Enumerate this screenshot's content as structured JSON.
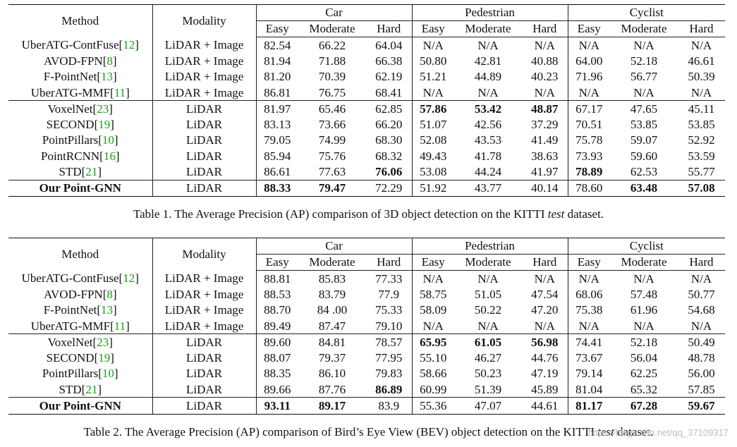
{
  "headers": {
    "method": "Method",
    "modality": "Modality",
    "groups": [
      "Car",
      "Pedestrian",
      "Cyclist"
    ],
    "subcols": [
      "Easy",
      "Moderate",
      "Hard"
    ]
  },
  "tables": [
    {
      "caption_pre": "Table 1. The Average Precision (AP) comparison of 3D object detection on the KITTI ",
      "caption_em": "test",
      "caption_post": " dataset.",
      "rows": [
        {
          "name": "UberATG-ContFuse",
          "ref": "12",
          "modality": "LiDAR + Image",
          "values": [
            "82.54",
            "66.22",
            "64.04",
            "N/A",
            "N/A",
            "N/A",
            "N/A",
            "N/A",
            "N/A"
          ],
          "bold": []
        },
        {
          "name": "AVOD-FPN",
          "ref": "8",
          "modality": "LiDAR + Image",
          "values": [
            "81.94",
            "71.88",
            "66.38",
            "50.80",
            "42.81",
            "40.88",
            "64.00",
            "52.18",
            "46.61"
          ],
          "bold": []
        },
        {
          "name": "F-PointNet",
          "ref": "13",
          "modality": "LiDAR + Image",
          "values": [
            "81.20",
            "70.39",
            "62.19",
            "51.21",
            "44.89",
            "40.23",
            "71.96",
            "56.77",
            "50.39"
          ],
          "bold": []
        },
        {
          "name": "UberATG-MMF",
          "ref": "11",
          "modality": "LiDAR + Image",
          "values": [
            "86.81",
            "76.75",
            "68.41",
            "N/A",
            "N/A",
            "N/A",
            "N/A",
            "N/A",
            "N/A"
          ],
          "bold": []
        },
        {
          "name": "VoxelNet",
          "ref": "23",
          "modality": "LiDAR",
          "values": [
            "81.97",
            "65.46",
            "62.85",
            "57.86",
            "53.42",
            "48.87",
            "67.17",
            "47.65",
            "45.11"
          ],
          "bold": [
            3,
            4,
            5
          ]
        },
        {
          "name": "SECOND",
          "ref": "19",
          "modality": "LiDAR",
          "values": [
            "83.13",
            "73.66",
            "66.20",
            "51.07",
            "42.56",
            "37.29",
            "70.51",
            "53.85",
            "53.85"
          ],
          "bold": []
        },
        {
          "name": "PointPillars",
          "ref": "10",
          "modality": "LiDAR",
          "values": [
            "79.05",
            "74.99",
            "68.30",
            "52.08",
            "43.53",
            "41.49",
            "75.78",
            "59.07",
            "52.92"
          ],
          "bold": []
        },
        {
          "name": "PointRCNN",
          "ref": "16",
          "modality": "LiDAR",
          "values": [
            "85.94",
            "75.76",
            "68.32",
            "49.43",
            "41.78",
            "38.63",
            "73.93",
            "59.60",
            "53.59"
          ],
          "bold": []
        },
        {
          "name": "STD",
          "ref": "21",
          "modality": "LiDAR",
          "values": [
            "86.61",
            "77.63",
            "76.06",
            "53.08",
            "44.24",
            "41.97",
            "78.89",
            "62.53",
            "55.77"
          ],
          "bold": [
            2,
            6
          ]
        },
        {
          "name": "Our Point-GNN",
          "ref": "",
          "modality": "LiDAR",
          "values": [
            "88.33",
            "79.47",
            "72.29",
            "51.92",
            "43.77",
            "40.14",
            "78.60",
            "63.48",
            "57.08"
          ],
          "bold": [
            0,
            1,
            7,
            8
          ],
          "name_bold": true
        }
      ]
    },
    {
      "caption_pre": "Table 2. The Average Precision (AP) comparison of Bird’s Eye View (BEV) object detection on the KITTI ",
      "caption_em": "test",
      "caption_post": " dataset.",
      "rows": [
        {
          "name": "UberATG-ContFuse",
          "ref": "12",
          "modality": "LiDAR + Image",
          "values": [
            "88.81",
            "85.83",
            "77.33",
            "N/A",
            "N/A",
            "N/A",
            "N/A",
            "N/A",
            "N/A"
          ],
          "bold": []
        },
        {
          "name": "AVOD-FPN",
          "ref": "8",
          "modality": "LiDAR + Image",
          "values": [
            "88.53",
            "83.79",
            "77.9",
            "58.75",
            "51.05",
            "47.54",
            "68.06",
            "57.48",
            "50.77"
          ],
          "bold": []
        },
        {
          "name": "F-PointNet",
          "ref": "13",
          "modality": "LiDAR + Image",
          "values": [
            "88.70",
            "84 .00",
            "75.33",
            "58.09",
            "50.22",
            "47.20",
            "75.38",
            "61.96",
            "54.68"
          ],
          "bold": []
        },
        {
          "name": "UberATG-MMF",
          "ref": "11",
          "modality": "LiDAR + Image",
          "values": [
            "89.49",
            "87.47",
            "79.10",
            "N/A",
            "N/A",
            "N/A",
            "N/A",
            "N/A",
            "N/A"
          ],
          "bold": []
        },
        {
          "name": "VoxelNet",
          "ref": "23",
          "modality": "LiDAR",
          "values": [
            "89.60",
            "84.81",
            "78.57",
            "65.95",
            "61.05",
            "56.98",
            "74.41",
            "52.18",
            "50.49"
          ],
          "bold": [
            3,
            4,
            5
          ]
        },
        {
          "name": "SECOND",
          "ref": "19",
          "modality": "LiDAR",
          "values": [
            "88.07",
            "79.37",
            "77.95",
            "55.10",
            "46.27",
            "44.76",
            "73.67",
            "56.04",
            "48.78"
          ],
          "bold": []
        },
        {
          "name": "PointPillars",
          "ref": "10",
          "modality": "LiDAR",
          "values": [
            "88.35",
            "86.10",
            "79.83",
            "58.66",
            "50.23",
            "47.19",
            "79.14",
            "62.25",
            "56.00"
          ],
          "bold": []
        },
        {
          "name": "STD",
          "ref": "21",
          "modality": "LiDAR",
          "values": [
            "89.66",
            "87.76",
            "86.89",
            "60.99",
            "51.39",
            "45.89",
            "81.04",
            "65.32",
            "57.85"
          ],
          "bold": [
            2
          ]
        },
        {
          "name": "Our Point-GNN",
          "ref": "",
          "modality": "LiDAR",
          "values": [
            "93.11",
            "89.17",
            "83.9",
            "55.36",
            "47.07",
            "44.61",
            "81.17",
            "67.28",
            "59.67"
          ],
          "bold": [
            0,
            1,
            6,
            7,
            8
          ],
          "name_bold": true
        }
      ]
    }
  ],
  "watermark": "https://blog.csdn.net/qq_37109317",
  "colors": {
    "ref_link": "#16a016",
    "text": "#111111"
  }
}
